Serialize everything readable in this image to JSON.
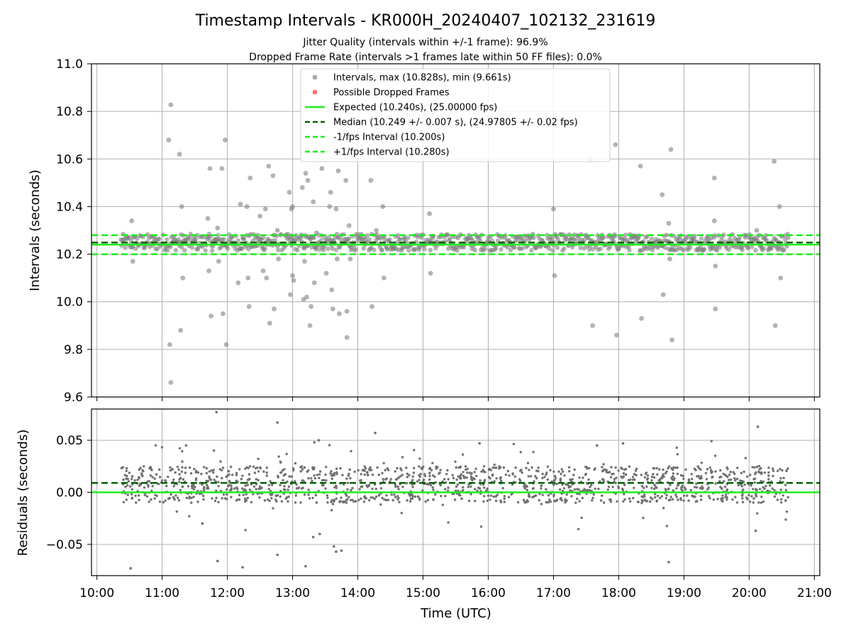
{
  "title": "Timestamp Intervals - KR000H_20240407_102132_231619",
  "subtitles": [
    "Jitter Quality (intervals within +/-1 frame): 96.9%",
    "Dropped Frame Rate (intervals >1 frames late within 50 FF files): 0.0%"
  ],
  "colors": {
    "points": "#808080",
    "dropped": "#ff4d4d",
    "expected": "#1aef1a",
    "median": "#006400",
    "fps_band": "#1aef1a",
    "grid": "#b0b0b0"
  },
  "chart_data": [
    {
      "type": "scatter",
      "name": "intervals-panel",
      "ylabel": "Intervals (seconds)",
      "xlabel": "",
      "xlim": [
        "09:55",
        "21:05"
      ],
      "ylim": [
        9.6,
        11.0
      ],
      "grid": true,
      "legend_position": "upper center",
      "x_ticks": [
        "10:00",
        "11:00",
        "12:00",
        "13:00",
        "14:00",
        "15:00",
        "16:00",
        "17:00",
        "18:00",
        "19:00",
        "20:00",
        "21:00"
      ],
      "y_ticks": [
        "9.6",
        "9.8",
        "10.0",
        "10.2",
        "10.4",
        "10.6",
        "10.8",
        "11.0"
      ],
      "legend": [
        {
          "label": "Intervals, max (10.828s), min (9.661s)",
          "kind": "marker",
          "color": "#a0a0a0"
        },
        {
          "label": "Possible Dropped Frames",
          "kind": "marker",
          "color": "#ff6666"
        },
        {
          "label": "Expected (10.240s), (25.00000 fps)",
          "kind": "line",
          "color": "#1aef1a",
          "dash": "solid"
        },
        {
          "label": "Median (10.249 +/- 0.007 s), (24.97805 +/- 0.02 fps)",
          "kind": "line",
          "color": "#006400",
          "dash": "dashed"
        },
        {
          "label": "-1/fps Interval (10.200s)",
          "kind": "line",
          "color": "#1aef1a",
          "dash": "dashed"
        },
        {
          "label": "+1/fps Interval (10.280s)",
          "kind": "line",
          "color": "#1aef1a",
          "dash": "dashed"
        }
      ],
      "reference_lines": [
        {
          "y": 10.24,
          "color": "#1aef1a",
          "dash": "solid"
        },
        {
          "y": 10.249,
          "color": "#006400",
          "dash": "dashed"
        },
        {
          "y": 10.2,
          "color": "#1aef1a",
          "dash": "dashed"
        },
        {
          "y": 10.28,
          "color": "#1aef1a",
          "dash": "dashed"
        }
      ],
      "time_range": [
        "10:22",
        "20:36"
      ],
      "baseline_band": [
        10.215,
        10.285
      ],
      "outliers": [
        {
          "t": "10:32",
          "y": 10.34
        },
        {
          "t": "10:33",
          "y": 10.17
        },
        {
          "t": "11:06",
          "y": 10.68
        },
        {
          "t": "11:07",
          "y": 9.82
        },
        {
          "t": "11:08",
          "y": 10.828
        },
        {
          "t": "11:08",
          "y": 9.661
        },
        {
          "t": "11:16",
          "y": 10.62
        },
        {
          "t": "11:17",
          "y": 9.88
        },
        {
          "t": "11:18",
          "y": 10.4
        },
        {
          "t": "11:19",
          "y": 10.1
        },
        {
          "t": "11:42",
          "y": 10.35
        },
        {
          "t": "11:43",
          "y": 10.13
        },
        {
          "t": "11:44",
          "y": 10.56
        },
        {
          "t": "11:45",
          "y": 9.94
        },
        {
          "t": "11:51",
          "y": 10.31
        },
        {
          "t": "11:52",
          "y": 10.17
        },
        {
          "t": "11:55",
          "y": 10.56
        },
        {
          "t": "11:56",
          "y": 9.95
        },
        {
          "t": "11:58",
          "y": 10.68
        },
        {
          "t": "11:59",
          "y": 9.82
        },
        {
          "t": "12:10",
          "y": 10.08
        },
        {
          "t": "12:12",
          "y": 10.41
        },
        {
          "t": "12:18",
          "y": 10.4
        },
        {
          "t": "12:19",
          "y": 10.1
        },
        {
          "t": "12:20",
          "y": 9.98
        },
        {
          "t": "12:21",
          "y": 10.52
        },
        {
          "t": "12:28",
          "y": 10.28
        },
        {
          "t": "12:30",
          "y": 10.36
        },
        {
          "t": "12:33",
          "y": 10.13
        },
        {
          "t": "12:35",
          "y": 10.39
        },
        {
          "t": "12:36",
          "y": 10.1
        },
        {
          "t": "12:38",
          "y": 10.57
        },
        {
          "t": "12:39",
          "y": 9.91
        },
        {
          "t": "12:42",
          "y": 10.53
        },
        {
          "t": "12:43",
          "y": 9.97
        },
        {
          "t": "12:46",
          "y": 10.3
        },
        {
          "t": "12:47",
          "y": 10.18
        },
        {
          "t": "12:57",
          "y": 10.46
        },
        {
          "t": "12:58",
          "y": 10.03
        },
        {
          "t": "12:59",
          "y": 10.39
        },
        {
          "t": "13:00",
          "y": 10.11
        },
        {
          "t": "13:00",
          "y": 10.4
        },
        {
          "t": "13:01",
          "y": 10.09
        },
        {
          "t": "13:09",
          "y": 10.48
        },
        {
          "t": "13:10",
          "y": 10.01
        },
        {
          "t": "13:11",
          "y": 10.17
        },
        {
          "t": "13:12",
          "y": 10.54
        },
        {
          "t": "13:13",
          "y": 10.02
        },
        {
          "t": "13:14",
          "y": 10.51
        },
        {
          "t": "13:16",
          "y": 9.9
        },
        {
          "t": "13:17",
          "y": 9.98
        },
        {
          "t": "13:19",
          "y": 10.42
        },
        {
          "t": "13:20",
          "y": 10.08
        },
        {
          "t": "13:22",
          "y": 10.29
        },
        {
          "t": "13:24",
          "y": 10.28
        },
        {
          "t": "13:27",
          "y": 10.56
        },
        {
          "t": "13:31",
          "y": 10.12
        },
        {
          "t": "13:34",
          "y": 10.4
        },
        {
          "t": "13:35",
          "y": 10.46
        },
        {
          "t": "13:36",
          "y": 10.05
        },
        {
          "t": "13:37",
          "y": 9.97
        },
        {
          "t": "13:40",
          "y": 10.39
        },
        {
          "t": "13:41",
          "y": 10.18
        },
        {
          "t": "13:42",
          "y": 10.55
        },
        {
          "t": "13:43",
          "y": 9.95
        },
        {
          "t": "13:49",
          "y": 10.51
        },
        {
          "t": "13:50",
          "y": 9.96
        },
        {
          "t": "13:50",
          "y": 9.85
        },
        {
          "t": "13:52",
          "y": 10.32
        },
        {
          "t": "13:53",
          "y": 10.18
        },
        {
          "t": "14:12",
          "y": 10.51
        },
        {
          "t": "14:13",
          "y": 9.98
        },
        {
          "t": "14:17",
          "y": 10.3
        },
        {
          "t": "14:23",
          "y": 10.4
        },
        {
          "t": "14:24",
          "y": 10.1
        },
        {
          "t": "15:06",
          "y": 10.37
        },
        {
          "t": "15:07",
          "y": 10.12
        },
        {
          "t": "17:00",
          "y": 10.39
        },
        {
          "t": "17:01",
          "y": 10.11
        },
        {
          "t": "17:34",
          "y": 10.6
        },
        {
          "t": "17:36",
          "y": 9.9
        },
        {
          "t": "17:57",
          "y": 10.66
        },
        {
          "t": "17:58",
          "y": 9.86
        },
        {
          "t": "18:20",
          "y": 10.57
        },
        {
          "t": "18:21",
          "y": 9.93
        },
        {
          "t": "18:40",
          "y": 10.45
        },
        {
          "t": "18:41",
          "y": 10.03
        },
        {
          "t": "18:46",
          "y": 10.33
        },
        {
          "t": "18:47",
          "y": 10.18
        },
        {
          "t": "18:48",
          "y": 10.64
        },
        {
          "t": "18:49",
          "y": 9.84
        },
        {
          "t": "19:28",
          "y": 10.52
        },
        {
          "t": "19:29",
          "y": 9.97
        },
        {
          "t": "19:28",
          "y": 10.34
        },
        {
          "t": "19:29",
          "y": 10.15
        },
        {
          "t": "20:07",
          "y": 10.3
        },
        {
          "t": "20:23",
          "y": 10.59
        },
        {
          "t": "20:24",
          "y": 9.9
        },
        {
          "t": "20:28",
          "y": 10.4
        },
        {
          "t": "20:29",
          "y": 10.1
        }
      ]
    },
    {
      "type": "scatter",
      "name": "residuals-panel",
      "ylabel": "Residuals (seconds)",
      "xlabel": "Time (UTC)",
      "xlim": [
        "09:55",
        "21:05"
      ],
      "ylim": [
        -0.08,
        0.08
      ],
      "grid": true,
      "y_ticks": [
        "−0.05",
        "0.00",
        "0.05"
      ],
      "y_tick_values": [
        -0.05,
        0.0,
        0.05
      ],
      "x_ticks": [
        "10:00",
        "11:00",
        "12:00",
        "13:00",
        "14:00",
        "15:00",
        "16:00",
        "17:00",
        "18:00",
        "19:00",
        "20:00",
        "21:00"
      ],
      "reference_lines": [
        {
          "y": 0.0,
          "color": "#1aef1a",
          "dash": "solid"
        },
        {
          "y": 0.009,
          "color": "#006400",
          "dash": "dashed"
        }
      ],
      "time_range": [
        "10:22",
        "20:36"
      ],
      "baseline_band": [
        -0.01,
        0.025
      ],
      "outliers": [
        {
          "t": "10:31",
          "y": -0.073
        },
        {
          "t": "11:50",
          "y": 0.077
        },
        {
          "t": "11:51",
          "y": -0.066
        },
        {
          "t": "12:14",
          "y": -0.072
        },
        {
          "t": "12:46",
          "y": 0.067
        },
        {
          "t": "12:46",
          "y": -0.06
        },
        {
          "t": "13:12",
          "y": -0.071
        },
        {
          "t": "13:19",
          "y": -0.043
        },
        {
          "t": "13:20",
          "y": 0.048
        },
        {
          "t": "13:24",
          "y": 0.05
        },
        {
          "t": "13:25",
          "y": -0.04
        },
        {
          "t": "13:38",
          "y": -0.052
        },
        {
          "t": "13:40",
          "y": -0.057
        },
        {
          "t": "13:45",
          "y": -0.056
        },
        {
          "t": "14:16",
          "y": 0.057
        },
        {
          "t": "18:46",
          "y": -0.067
        },
        {
          "t": "20:08",
          "y": 0.063
        },
        {
          "t": "20:06",
          "y": -0.037
        },
        {
          "t": "11:22",
          "y": 0.045
        },
        {
          "t": "11:37",
          "y": -0.03
        },
        {
          "t": "17:40",
          "y": 0.045
        },
        {
          "t": "18:04",
          "y": 0.047
        },
        {
          "t": "15:52",
          "y": 0.047
        }
      ]
    }
  ]
}
